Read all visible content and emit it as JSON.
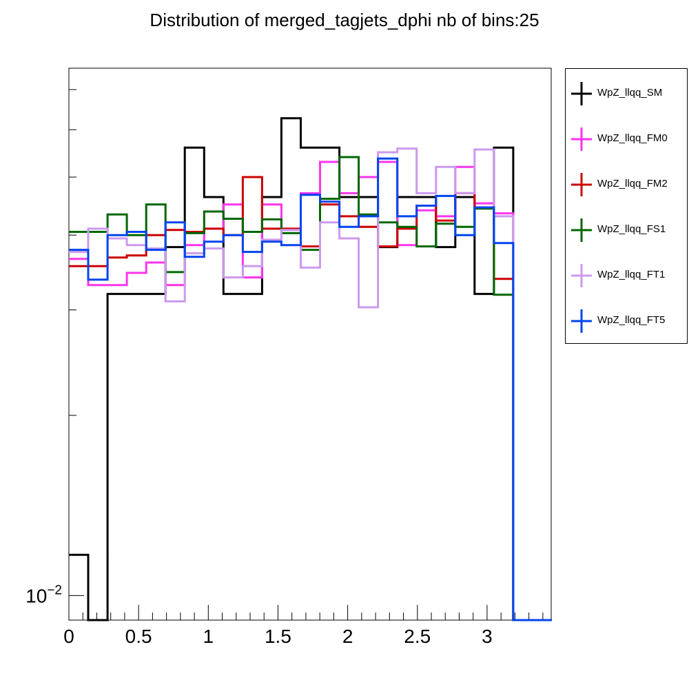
{
  "chart_data": {
    "type": "line",
    "title": "Distribution of merged_tagjets_dphi nb of bins:25",
    "xlabel": "",
    "ylabel": "",
    "xlim": [
      0,
      3.46
    ],
    "ylim": [
      0.0091,
      0.076
    ],
    "yscale": "log",
    "x_ticks": [
      "0",
      "0.5",
      "1",
      "1.5",
      "2",
      "2.5",
      "3"
    ],
    "x_tick_values": [
      0,
      0.5,
      1,
      1.5,
      2,
      2.5,
      3
    ],
    "y_tick_labels": [
      {
        "value": 0.01,
        "label": "10",
        "exponent": "−2"
      }
    ],
    "bin_edges": [
      0,
      0.1386,
      0.2772,
      0.4158,
      0.5544,
      0.693,
      0.8316,
      0.9702,
      1.1088,
      1.2474,
      1.386,
      1.5246,
      1.6632,
      1.8018,
      1.9404,
      2.079,
      2.2176,
      2.3562,
      2.4948,
      2.6334,
      2.772,
      2.9106,
      3.0492,
      3.1878,
      3.3264,
      3.465
    ],
    "legend_position": "right",
    "series": [
      {
        "name": "WpZ_llqq_SM",
        "color": "#000000",
        "values": [
          0.0117,
          0.0091,
          0.0319,
          0.0319,
          0.0319,
          0.0382,
          0.056,
          0.0463,
          0.0319,
          0.0319,
          0.0463,
          0.0627,
          0.056,
          0.056,
          0.0463,
          0.0463,
          0.0382,
          0.0463,
          0.0463,
          0.0382,
          0.0463,
          0.0319,
          0.056,
          0.0091,
          0.0091
        ]
      },
      {
        "name": "WpZ_llqq_FM0",
        "color": "#ff33ee",
        "values": [
          0.0365,
          0.033,
          0.033,
          0.0346,
          0.036,
          0.033,
          0.0385,
          0.041,
          0.045,
          0.034,
          0.045,
          0.0408,
          0.047,
          0.053,
          0.047,
          0.05,
          0.053,
          0.0385,
          0.044,
          0.043,
          0.052,
          0.0452,
          0.0435,
          0.0091,
          0.0091
        ]
      },
      {
        "name": "WpZ_llqq_FM2",
        "color": "#cc0000",
        "values": [
          0.0355,
          0.0355,
          0.0367,
          0.037,
          0.04,
          0.0408,
          0.0405,
          0.041,
          0.04,
          0.05,
          0.041,
          0.041,
          0.0383,
          0.045,
          0.043,
          0.0413,
          0.0383,
          0.041,
          0.0448,
          0.0423,
          0.047,
          0.0445,
          0.0338,
          0.0091,
          0.0091
        ]
      },
      {
        "name": "WpZ_llqq_FS1",
        "color": "#006600",
        "values": [
          0.0405,
          0.0405,
          0.0433,
          0.04,
          0.045,
          0.0347,
          0.0403,
          0.0438,
          0.0426,
          0.0405,
          0.0425,
          0.0403,
          0.0378,
          0.046,
          0.054,
          0.0433,
          0.042,
          0.0413,
          0.0383,
          0.0418,
          0.0413,
          0.0443,
          0.0318,
          0.0091,
          0.0091
        ]
      },
      {
        "name": "WpZ_llqq_FT1",
        "color": "#cc99ee",
        "values": [
          0.0375,
          0.041,
          0.0395,
          0.0385,
          0.038,
          0.031,
          0.0373,
          0.038,
          0.034,
          0.0355,
          0.0393,
          0.0408,
          0.0353,
          0.042,
          0.0395,
          0.0303,
          0.055,
          0.0558,
          0.047,
          0.052,
          0.047,
          0.0556,
          0.043,
          0.0091,
          0.0091
        ]
      },
      {
        "name": "WpZ_llqq_FT5",
        "color": "#0044ee",
        "values": [
          0.0378,
          0.0337,
          0.04,
          0.0405,
          0.0378,
          0.042,
          0.0368,
          0.039,
          0.04,
          0.0375,
          0.039,
          0.0385,
          0.0467,
          0.0455,
          0.0413,
          0.043,
          0.0537,
          0.043,
          0.0448,
          0.0465,
          0.04,
          0.0445,
          0.0388,
          0.0091,
          0.0091
        ]
      }
    ]
  }
}
